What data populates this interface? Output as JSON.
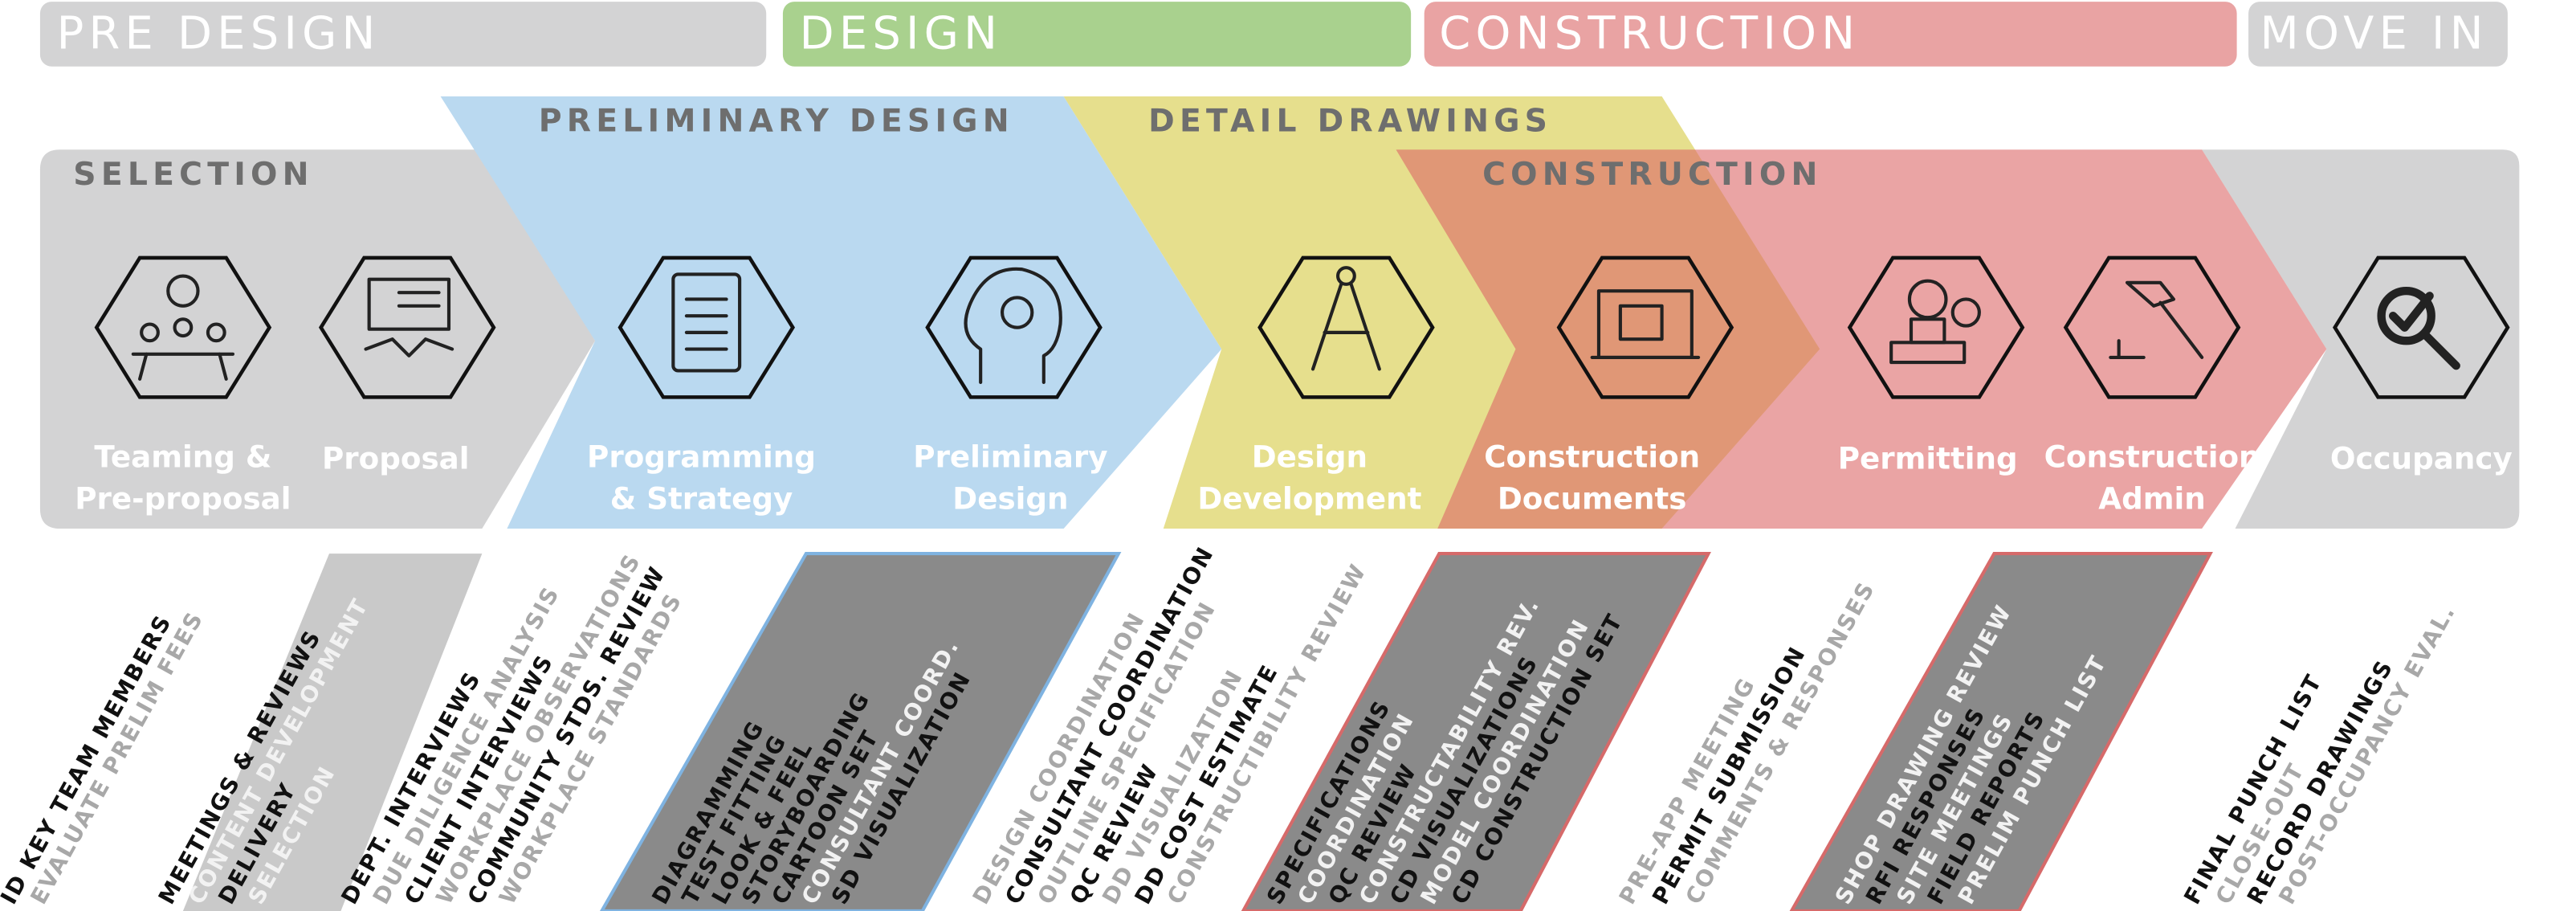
{
  "phases": [
    "PRE DESIGN",
    "DESIGN",
    "CONSTRUCTION",
    "MOVE IN"
  ],
  "bands": [
    "SELECTION",
    "PRELIMINARY DESIGN",
    "DETAIL DRAWINGS",
    "CONSTRUCTION"
  ],
  "steps": [
    [
      "Teaming &",
      "Pre-proposal"
    ],
    [
      "Proposal"
    ],
    [
      "Programming",
      "& Strategy"
    ],
    [
      "Preliminary",
      "Design"
    ],
    [
      "Design",
      "Development"
    ],
    [
      "Construction",
      "Documents"
    ],
    [
      "Permitting"
    ],
    [
      "Construction",
      "Admin"
    ],
    [
      "Occupancy"
    ]
  ],
  "tasks": [
    [
      "ID KEY TEAM MEMBERS",
      "EVALUATE PRELIM FEES"
    ],
    [
      "MEETINGS & REVIEWS",
      "CONTENT DEVELOPMENT",
      "DELIVERY",
      "SELECTION"
    ],
    [
      "DEPT. INTERVIEWS",
      "DUE DILIGENCE ANALYSIS",
      "CLIENT INTERVIEWS",
      "WORKPLACE OBSERVATIONS",
      "COMMUNITY STDS. REVIEW",
      "WORKPLACE STANDARDS"
    ],
    [
      "DIAGRAMMING",
      "TEST FITTING",
      "LOOK & FEEL",
      "STORYBOARDING",
      "CARTOON SET",
      "CONSULTANT COORD.",
      "SD VISUALIZATION"
    ],
    [
      "DESIGN COORDINATION",
      "CONSULTANT COORDINATION",
      "OUTLINE SPECIFICATION",
      "QC REVIEW",
      "DD VISUALIZATION",
      "DD COST ESTIMATE",
      "CONSTRUCTIBILITY REVIEW"
    ],
    [
      "SPECIFICATIONS",
      "COORDINATION",
      "QC REVIEW",
      "CONSTRUCTABILITY REV.",
      "CD VISUALIZATIONS",
      "MODEL COORDINATION",
      "CD CONSTRUCTION SET"
    ],
    [
      "PRE-APP MEETING",
      "PERMIT SUBMISSION",
      "COMMENTS & RESPONSES"
    ],
    [
      "SHOP DRAWING REVIEW",
      "RFI RESPONSES",
      "SITE MEETINGS",
      "FIELD REPORTS",
      "PRELIM PUNCH LIST"
    ],
    [
      "FINAL PUNCH LIST",
      "CLOSE-OUT",
      "RECORD DRAWINGS",
      "POST-OCCUPANCY EVAL."
    ]
  ]
}
